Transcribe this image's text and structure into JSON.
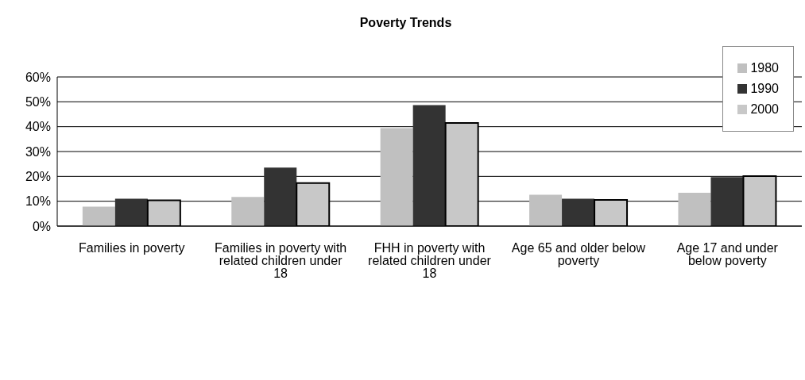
{
  "chart_data": {
    "type": "bar",
    "title": "Poverty Trends",
    "categories": [
      "Families in poverty",
      "Families in poverty with related children under 18",
      "FHH in poverty with related children under 18",
      "Age 65 and older below poverty",
      "Age 17 and under below poverty"
    ],
    "series": [
      {
        "name": "1980",
        "color": "#c0c0c0",
        "values": [
          7.8,
          11.7,
          39.4,
          12.6,
          13.4
        ]
      },
      {
        "name": "1990",
        "color": "#333333",
        "values": [
          11.0,
          23.5,
          48.7,
          11.0,
          19.7
        ]
      },
      {
        "name": "2000",
        "color": "#c8c8c8",
        "values": [
          10.4,
          17.3,
          41.5,
          10.5,
          20.1
        ]
      }
    ],
    "ylim": [
      0,
      60
    ],
    "yticks": [
      {
        "value": 0,
        "label": "0%"
      },
      {
        "value": 10,
        "label": "10%"
      },
      {
        "value": 20,
        "label": "20%"
      },
      {
        "value": 30,
        "label": "30%"
      },
      {
        "value": 40,
        "label": "40%"
      },
      {
        "value": 50,
        "label": "50%"
      },
      {
        "value": 60,
        "label": "60%"
      }
    ],
    "grid": "y",
    "legend": "top right"
  }
}
